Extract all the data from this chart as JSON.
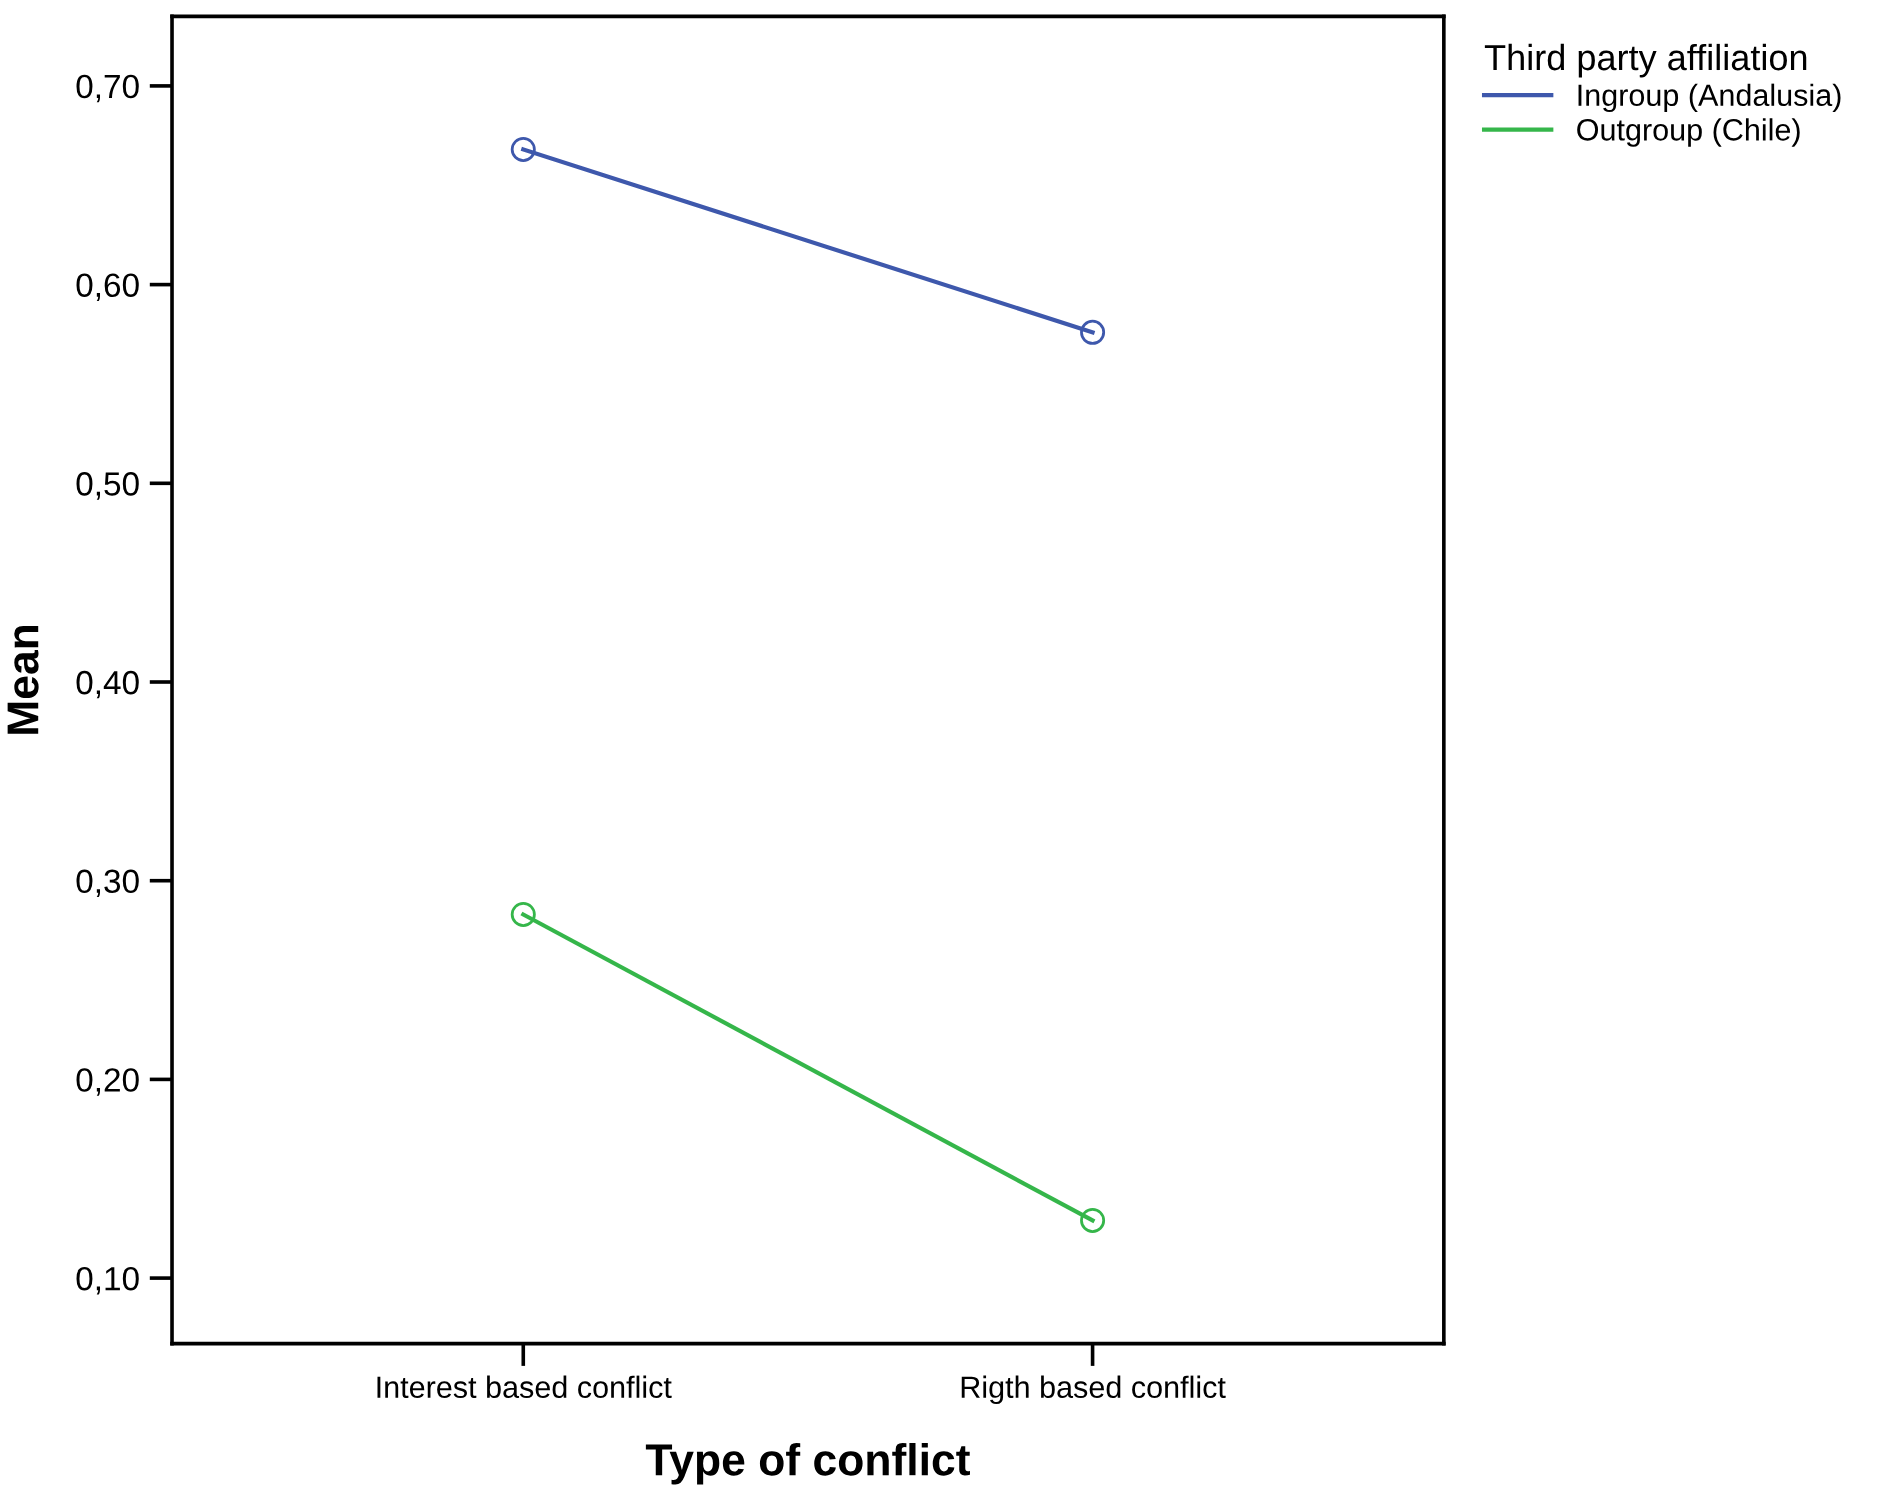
{
  "chart_data": {
    "type": "line",
    "xlabel": "Type of conflict",
    "ylabel": "Mean",
    "legend_title": "Third party affiliation",
    "categories": [
      "Interest based conflict",
      "Rigth based conflict"
    ],
    "series": [
      {
        "name": "Ingroup (Andalusia)",
        "color": "#3e58ac",
        "values": [
          0.668,
          0.576
        ]
      },
      {
        "name": "Outgroup (Chile)",
        "color": "#35b64a",
        "values": [
          0.283,
          0.129
        ]
      }
    ],
    "ylim": [
      0.067,
      0.735
    ],
    "yticks": [
      {
        "value": 0.1,
        "label": "0,10"
      },
      {
        "value": 0.2,
        "label": "0,20"
      },
      {
        "value": 0.3,
        "label": "0,30"
      },
      {
        "value": 0.4,
        "label": "0,40"
      },
      {
        "value": 0.5,
        "label": "0,50"
      },
      {
        "value": 0.6,
        "label": "0,60"
      },
      {
        "value": 0.7,
        "label": "0,70"
      }
    ],
    "marker": "circle",
    "line_style": "solid",
    "grid": false,
    "legend": "top right"
  }
}
